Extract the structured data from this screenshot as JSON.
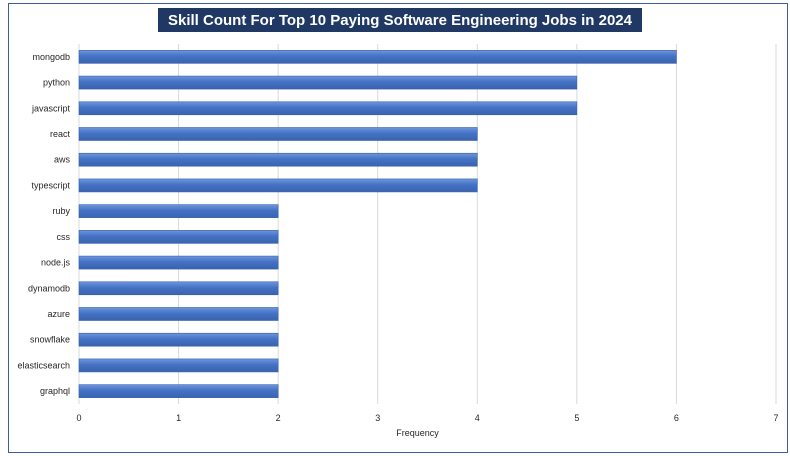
{
  "chart_data": {
    "type": "bar",
    "orientation": "horizontal",
    "title": "Skill Count For Top 10 Paying Software Engineering Jobs in 2024",
    "xlabel": "Frequency",
    "ylabel": "",
    "categories": [
      "mongodb",
      "python",
      "javascript",
      "react",
      "aws",
      "typescript",
      "ruby",
      "css",
      "node.js",
      "dynamodb",
      "azure",
      "snowflake",
      "elasticsearch",
      "graphql"
    ],
    "values": [
      6,
      5,
      5,
      4,
      4,
      4,
      2,
      2,
      2,
      2,
      2,
      2,
      2,
      2
    ],
    "xlim": [
      0,
      7
    ],
    "xticks": [
      "0",
      "1",
      "2",
      "3",
      "4",
      "5",
      "6",
      "7"
    ],
    "grid": "vertical",
    "legend": "none",
    "colors": {
      "bar": "#4472c4",
      "bar_top": "#5a85d6",
      "title_bg": "#203864",
      "title_text": "#ffffff",
      "grid": "#d9d9d9",
      "frame": "#3a5f9a"
    }
  }
}
